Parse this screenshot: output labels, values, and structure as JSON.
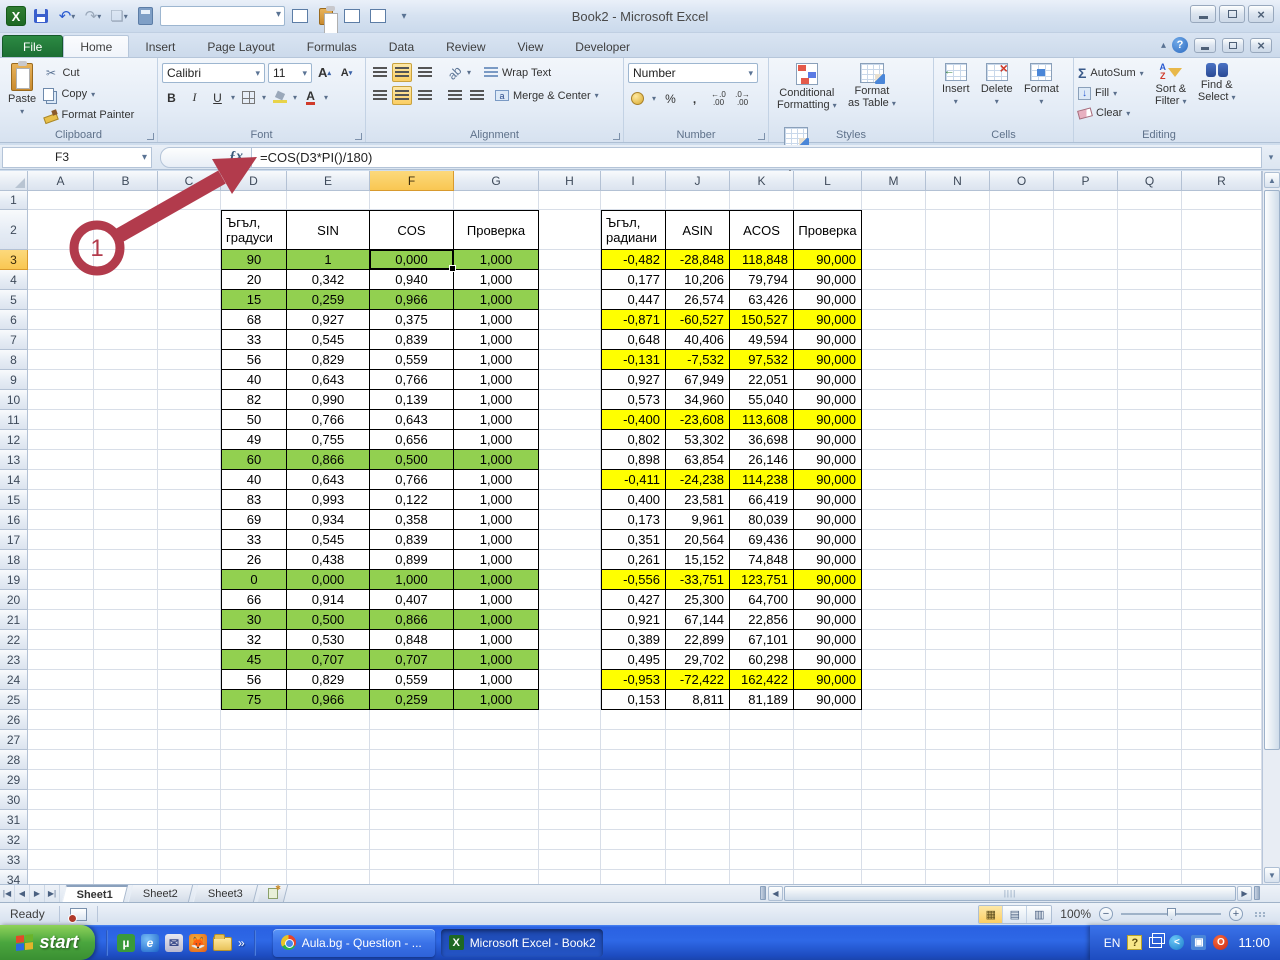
{
  "window": {
    "title": "Book2  -  Microsoft Excel"
  },
  "ribbon_tabs": {
    "file": "File",
    "home": "Home",
    "insert": "Insert",
    "page_layout": "Page Layout",
    "formulas": "Formulas",
    "data": "Data",
    "review": "Review",
    "view": "View",
    "developer": "Developer"
  },
  "ribbon": {
    "clipboard": {
      "label": "Clipboard",
      "paste": "Paste",
      "cut": "Cut",
      "copy": "Copy",
      "format_painter": "Format Painter"
    },
    "font": {
      "label": "Font",
      "family": "Calibri",
      "size": "11"
    },
    "alignment": {
      "label": "Alignment",
      "wrap_text": "Wrap Text",
      "merge_center": "Merge & Center"
    },
    "number": {
      "label": "Number",
      "format": "Number"
    },
    "styles": {
      "label": "Styles",
      "conditional1": "Conditional",
      "conditional2": "Formatting",
      "format_table1": "Format",
      "format_table2": "as Table",
      "cell_styles1": "Cell",
      "cell_styles2": "Styles"
    },
    "cells": {
      "label": "Cells",
      "insert": "Insert",
      "delete": "Delete",
      "format": "Format"
    },
    "editing": {
      "label": "Editing",
      "autosum": "AutoSum",
      "fill": "Fill",
      "clear": "Clear",
      "sort1": "Sort &",
      "sort2": "Filter",
      "find1": "Find &",
      "find2": "Select"
    }
  },
  "formula_bar": {
    "name_box": "F3",
    "fx": "ƒx",
    "formula": "=COS(D3*PI()/180)"
  },
  "grid": {
    "columns": [
      "A",
      "B",
      "C",
      "D",
      "E",
      "F",
      "G",
      "H",
      "I",
      "J",
      "K",
      "L",
      "M",
      "N",
      "O",
      "P",
      "Q",
      "R"
    ],
    "selected_column": "F",
    "selected_row": 3,
    "row_count": 34,
    "colors": {
      "green": "#92d050",
      "yellow": "#ffff00",
      "annotation": "#b23b4c"
    }
  },
  "table1": {
    "start_col": "D",
    "headers": [
      "Ъгъл,\nградуси",
      "SIN",
      "COS",
      "Проверка"
    ],
    "rows": [
      {
        "c": [
          "90",
          "1",
          "0,000",
          "1,000"
        ],
        "hl": true
      },
      {
        "c": [
          "20",
          "0,342",
          "0,940",
          "1,000"
        ],
        "hl": false
      },
      {
        "c": [
          "15",
          "0,259",
          "0,966",
          "1,000"
        ],
        "hl": true
      },
      {
        "c": [
          "68",
          "0,927",
          "0,375",
          "1,000"
        ],
        "hl": false
      },
      {
        "c": [
          "33",
          "0,545",
          "0,839",
          "1,000"
        ],
        "hl": false
      },
      {
        "c": [
          "56",
          "0,829",
          "0,559",
          "1,000"
        ],
        "hl": false
      },
      {
        "c": [
          "40",
          "0,643",
          "0,766",
          "1,000"
        ],
        "hl": false
      },
      {
        "c": [
          "82",
          "0,990",
          "0,139",
          "1,000"
        ],
        "hl": false
      },
      {
        "c": [
          "50",
          "0,766",
          "0,643",
          "1,000"
        ],
        "hl": false
      },
      {
        "c": [
          "49",
          "0,755",
          "0,656",
          "1,000"
        ],
        "hl": false
      },
      {
        "c": [
          "60",
          "0,866",
          "0,500",
          "1,000"
        ],
        "hl": true
      },
      {
        "c": [
          "40",
          "0,643",
          "0,766",
          "1,000"
        ],
        "hl": false
      },
      {
        "c": [
          "83",
          "0,993",
          "0,122",
          "1,000"
        ],
        "hl": false
      },
      {
        "c": [
          "69",
          "0,934",
          "0,358",
          "1,000"
        ],
        "hl": false
      },
      {
        "c": [
          "33",
          "0,545",
          "0,839",
          "1,000"
        ],
        "hl": false
      },
      {
        "c": [
          "26",
          "0,438",
          "0,899",
          "1,000"
        ],
        "hl": false
      },
      {
        "c": [
          "0",
          "0,000",
          "1,000",
          "1,000"
        ],
        "hl": true
      },
      {
        "c": [
          "66",
          "0,914",
          "0,407",
          "1,000"
        ],
        "hl": false
      },
      {
        "c": [
          "30",
          "0,500",
          "0,866",
          "1,000"
        ],
        "hl": true
      },
      {
        "c": [
          "32",
          "0,530",
          "0,848",
          "1,000"
        ],
        "hl": false
      },
      {
        "c": [
          "45",
          "0,707",
          "0,707",
          "1,000"
        ],
        "hl": true
      },
      {
        "c": [
          "56",
          "0,829",
          "0,559",
          "1,000"
        ],
        "hl": false
      },
      {
        "c": [
          "75",
          "0,966",
          "0,259",
          "1,000"
        ],
        "hl": true
      }
    ]
  },
  "table2": {
    "start_col": "I",
    "headers": [
      "Ъгъл,\nрадиани",
      "ASIN",
      "ACOS",
      "Проверка"
    ],
    "rows": [
      {
        "c": [
          "-0,482",
          "-28,848",
          "118,848",
          "90,000"
        ],
        "hl": true
      },
      {
        "c": [
          "0,177",
          "10,206",
          "79,794",
          "90,000"
        ],
        "hl": false
      },
      {
        "c": [
          "0,447",
          "26,574",
          "63,426",
          "90,000"
        ],
        "hl": false
      },
      {
        "c": [
          "-0,871",
          "-60,527",
          "150,527",
          "90,000"
        ],
        "hl": true
      },
      {
        "c": [
          "0,648",
          "40,406",
          "49,594",
          "90,000"
        ],
        "hl": false
      },
      {
        "c": [
          "-0,131",
          "-7,532",
          "97,532",
          "90,000"
        ],
        "hl": true
      },
      {
        "c": [
          "0,927",
          "67,949",
          "22,051",
          "90,000"
        ],
        "hl": false
      },
      {
        "c": [
          "0,573",
          "34,960",
          "55,040",
          "90,000"
        ],
        "hl": false
      },
      {
        "c": [
          "-0,400",
          "-23,608",
          "113,608",
          "90,000"
        ],
        "hl": true
      },
      {
        "c": [
          "0,802",
          "53,302",
          "36,698",
          "90,000"
        ],
        "hl": false
      },
      {
        "c": [
          "0,898",
          "63,854",
          "26,146",
          "90,000"
        ],
        "hl": false
      },
      {
        "c": [
          "-0,411",
          "-24,238",
          "114,238",
          "90,000"
        ],
        "hl": true
      },
      {
        "c": [
          "0,400",
          "23,581",
          "66,419",
          "90,000"
        ],
        "hl": false
      },
      {
        "c": [
          "0,173",
          "9,961",
          "80,039",
          "90,000"
        ],
        "hl": false
      },
      {
        "c": [
          "0,351",
          "20,564",
          "69,436",
          "90,000"
        ],
        "hl": false
      },
      {
        "c": [
          "0,261",
          "15,152",
          "74,848",
          "90,000"
        ],
        "hl": false
      },
      {
        "c": [
          "-0,556",
          "-33,751",
          "123,751",
          "90,000"
        ],
        "hl": true
      },
      {
        "c": [
          "0,427",
          "25,300",
          "64,700",
          "90,000"
        ],
        "hl": false
      },
      {
        "c": [
          "0,921",
          "67,144",
          "22,856",
          "90,000"
        ],
        "hl": false
      },
      {
        "c": [
          "0,389",
          "22,899",
          "67,101",
          "90,000"
        ],
        "hl": false
      },
      {
        "c": [
          "0,495",
          "29,702",
          "60,298",
          "90,000"
        ],
        "hl": false
      },
      {
        "c": [
          "-0,953",
          "-72,422",
          "162,422",
          "90,000"
        ],
        "hl": true
      },
      {
        "c": [
          "0,153",
          "8,811",
          "81,189",
          "90,000"
        ],
        "hl": false
      }
    ]
  },
  "annotation": {
    "label": "1"
  },
  "sheet_bar": {
    "tabs": [
      "Sheet1",
      "Sheet2",
      "Sheet3"
    ],
    "active_tab": "Sheet1"
  },
  "status_bar": {
    "mode": "Ready",
    "zoom": "100%"
  },
  "taskbar": {
    "start": "start",
    "tasks": [
      {
        "label": "Aula.bg - Question - ...",
        "active": false
      },
      {
        "label": "Microsoft Excel - Book2",
        "active": true
      }
    ],
    "tray": {
      "lang": "EN",
      "time": "11:00"
    }
  }
}
